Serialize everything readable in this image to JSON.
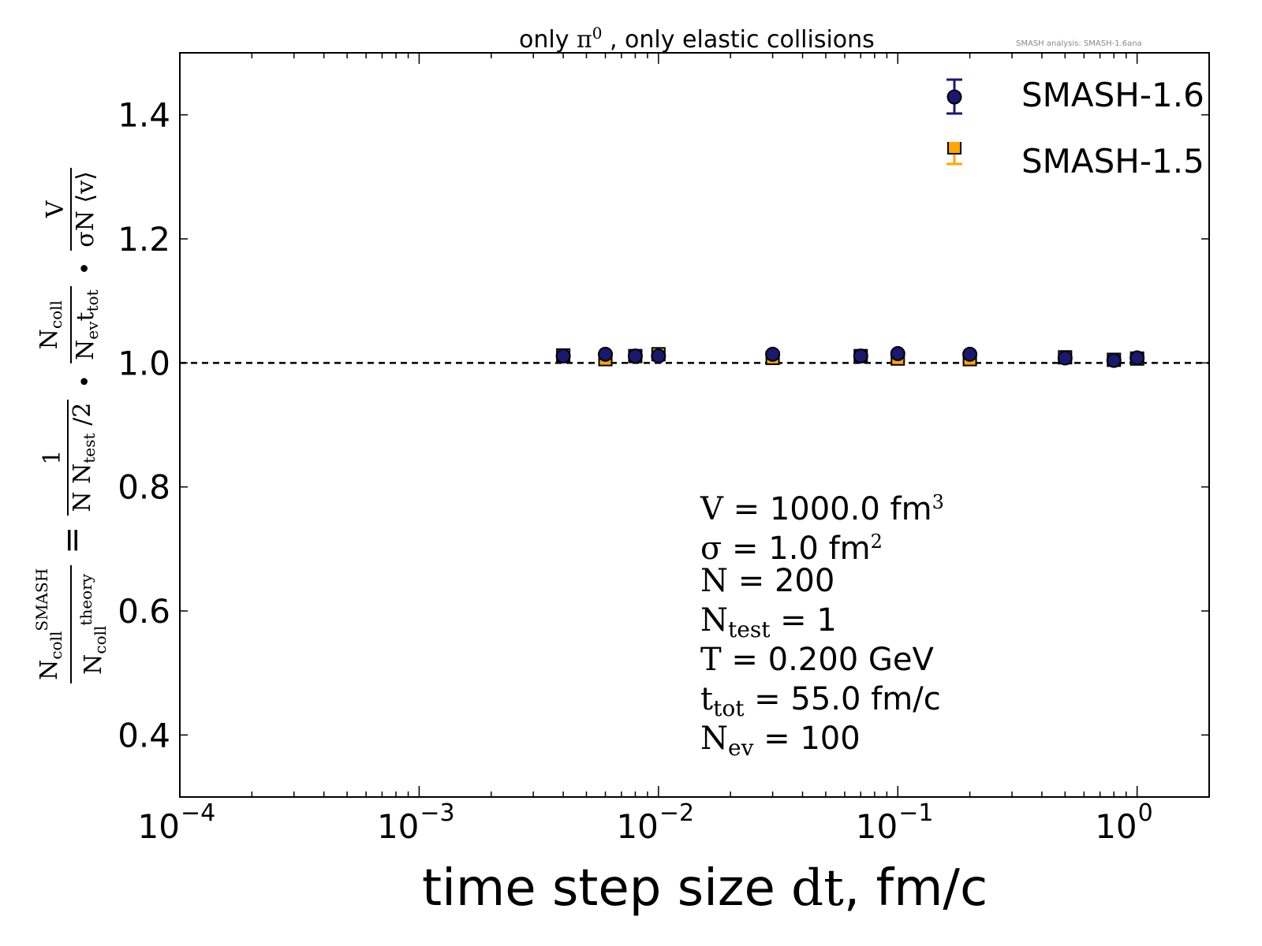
{
  "title": {
    "prefix": "only ",
    "pi": "π",
    "pi_sup": "0",
    "suffix": " , only elastic collisions"
  },
  "watermark": "SMASH analysis: SMASH-1.6ana",
  "legend": {
    "items": [
      {
        "label": "SMASH-1.6",
        "marker": "circle",
        "color": "#191970"
      },
      {
        "label": "SMASH-1.5",
        "marker": "square",
        "color": "#FFA500"
      }
    ]
  },
  "ylabel": {
    "f1_num_main": "N",
    "f1_num_sub": "coll",
    "f1_num_sup": "SMASH",
    "f1_den_main": "N",
    "f1_den_sub": "coll",
    "f1_den_sup": "theory",
    "eq": "=",
    "f2_num": "1",
    "f2_den_a": "N N",
    "f2_den_sub": "test",
    "f2_den_b": " /2",
    "dot1": "•",
    "f3_num_main": "N",
    "f3_num_sub": "coll",
    "f3_den_main": "N",
    "f3_den_sub1": "ev",
    "f3_den_t": "t",
    "f3_den_sub2": "tot",
    "dot2": "•",
    "f4_num": "V",
    "f4_den": "σN ⟨v⟩"
  },
  "xlabel": {
    "prefix": "time step size ",
    "dt": "dt",
    "suffix": ", fm/c"
  },
  "params": [
    {
      "sym": "V",
      "sub": "",
      "text": " = 1000.0 fm",
      "sup": "3"
    },
    {
      "sym": "σ",
      "sub": "",
      "text": " = 1.0 fm",
      "sup": "2"
    },
    {
      "sym": "N",
      "sub": "",
      "text": " = 200",
      "sup": ""
    },
    {
      "sym": "N",
      "sub": "test",
      "text": " = 1",
      "sup": ""
    },
    {
      "sym": "T",
      "sub": "",
      "text": " = 0.200 GeV",
      "sup": ""
    },
    {
      "sym": "t",
      "sub": "tot",
      "text": " = 55.0 fm/c",
      "sup": ""
    },
    {
      "sym": "N",
      "sub": "ev",
      "text": " = 100",
      "sup": ""
    }
  ],
  "chart_data": {
    "type": "scatter",
    "title": "only π0 , only elastic collisions",
    "xlabel": "time step size dt, fm/c",
    "ylabel": "N_coll^SMASH / N_coll^theory = 1/(N N_test /2) · N_coll/(N_ev t_tot) · V/(σN ⟨v⟩)",
    "xscale": "log",
    "xlim": [
      0.0001,
      2
    ],
    "ylim": [
      0.3,
      1.5
    ],
    "xticks": [
      {
        "value": 0.0001,
        "base": "10",
        "exp": "−4"
      },
      {
        "value": 0.001,
        "base": "10",
        "exp": "−3"
      },
      {
        "value": 0.01,
        "base": "10",
        "exp": "−2"
      },
      {
        "value": 0.1,
        "base": "10",
        "exp": "−1"
      },
      {
        "value": 1,
        "base": "10",
        "exp": "0"
      }
    ],
    "yticks": [
      {
        "value": 0.4,
        "label": "0.4"
      },
      {
        "value": 0.6,
        "label": "0.6"
      },
      {
        "value": 0.8,
        "label": "0.8"
      },
      {
        "value": 1.0,
        "label": "1.0"
      },
      {
        "value": 1.2,
        "label": "1.2"
      },
      {
        "value": 1.4,
        "label": "1.4"
      }
    ],
    "reference_line": {
      "y": 1.0,
      "style": "dashed",
      "color": "#000000"
    },
    "legend_position": "top-right",
    "grid": false,
    "x": [
      0.004,
      0.006,
      0.008,
      0.01,
      0.03,
      0.07,
      0.1,
      0.2,
      0.5,
      0.8,
      1.0
    ],
    "series": [
      {
        "name": "SMASH-1.5",
        "marker": "square",
        "color": "#FFA500",
        "values": [
          1.012,
          1.006,
          1.011,
          1.014,
          1.008,
          1.011,
          1.007,
          1.006,
          1.009,
          1.005,
          1.007
        ],
        "errors": [
          0.004,
          0.004,
          0.004,
          0.004,
          0.004,
          0.004,
          0.004,
          0.004,
          0.004,
          0.004,
          0.004
        ]
      },
      {
        "name": "SMASH-1.6",
        "marker": "circle",
        "color": "#191970",
        "values": [
          1.011,
          1.014,
          1.011,
          1.011,
          1.014,
          1.011,
          1.015,
          1.014,
          1.008,
          1.004,
          1.008
        ],
        "errors": [
          0.004,
          0.004,
          0.004,
          0.004,
          0.004,
          0.004,
          0.004,
          0.004,
          0.004,
          0.004,
          0.004
        ]
      }
    ]
  }
}
